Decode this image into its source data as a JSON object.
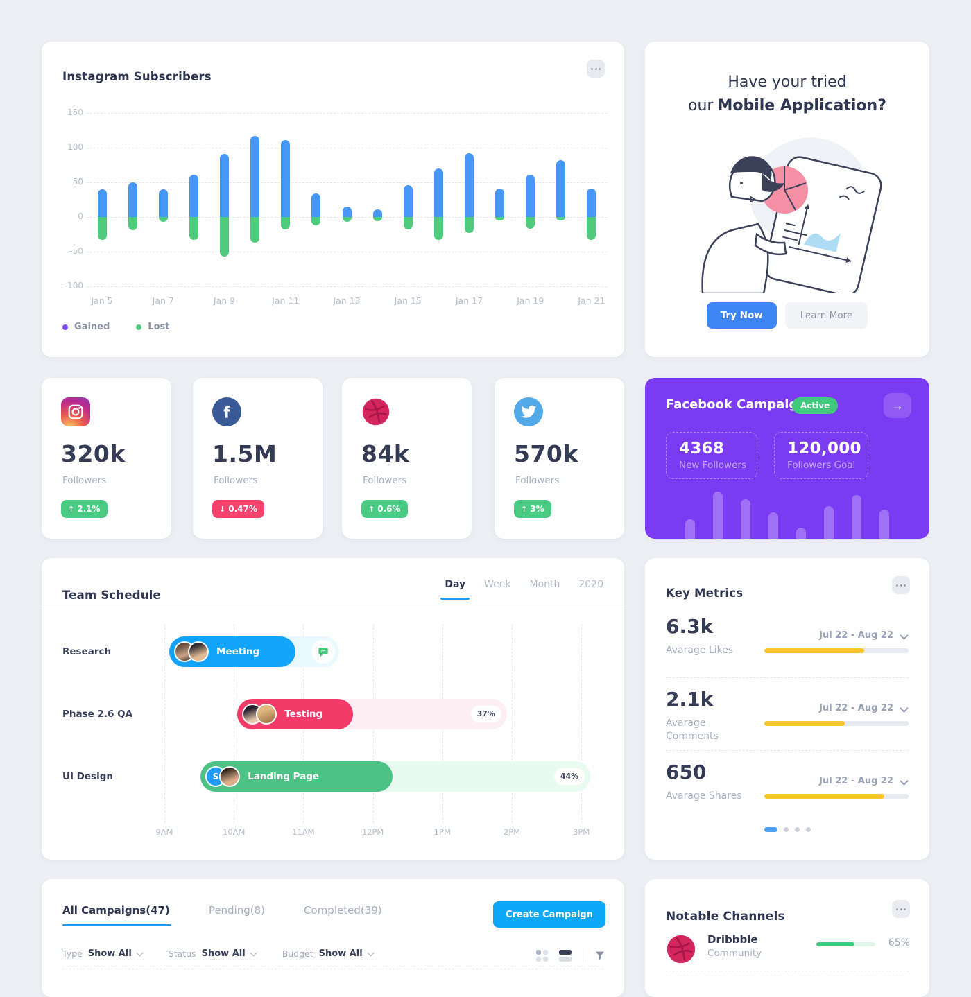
{
  "theme": {
    "background": "#EDEFF4",
    "card": "#FFFFFF",
    "text_dark": "#2F3651",
    "text_gray": "#A6ADBF",
    "blue": "#4697F8",
    "bright_blue": "#0DA7F8",
    "green": "#4FCB7D",
    "purple": "#7A3BF3",
    "legend_purple": "#7B4BFF",
    "yellow": "#FFC52F",
    "red": "#F4446E",
    "pink": "#F23B69"
  },
  "instagram_subscribers": {
    "title": "Instagram Subscribers",
    "legend": [
      {
        "label": "Gained",
        "color": "#7B4BFF"
      },
      {
        "label": "Lost",
        "color": "#4FCB7D"
      }
    ],
    "chart_data": {
      "type": "bar",
      "subtype": "diverging-stacked",
      "categories": [
        "Jan 5",
        "Jan 6",
        "Jan 7",
        "Jan 8",
        "Jan 9",
        "Jan 10",
        "Jan 11",
        "Jan 12",
        "Jan 13",
        "Jan 14",
        "Jan 15",
        "Jan 16",
        "Jan 17",
        "Jan 18",
        "Jan 19",
        "Jan 20",
        "Jan 21"
      ],
      "x_tick_labels": [
        "Jan 5",
        "Jan 7",
        "Jan 9",
        "Jan 11",
        "Jan 13",
        "Jan 15",
        "Jan 17",
        "Jan 19",
        "Jan 21"
      ],
      "series": [
        {
          "name": "Gained",
          "color": "#4697F8",
          "values": [
            40,
            50,
            40,
            61,
            91,
            117,
            111,
            34,
            15,
            11,
            46,
            70,
            92,
            41,
            61,
            82,
            41
          ]
        },
        {
          "name": "Lost",
          "color": "#4FCB7D",
          "values": [
            -33,
            -19,
            -7,
            -33,
            -57,
            -37,
            -18,
            -12,
            -7,
            -6,
            -18,
            -33,
            -23,
            -5,
            -17,
            -5,
            -33
          ]
        }
      ],
      "ylim": [
        -100,
        150
      ],
      "y_ticks": [
        150,
        100,
        50,
        0,
        -50,
        -100
      ],
      "grid": "dashed-horizontal",
      "legend_position": "bottom-left"
    }
  },
  "mobile_app_promo": {
    "heading_line1": "Have your tried",
    "heading_line2_normal": "our",
    "heading_line2_bold": "Mobile Application?",
    "primary_button": "Try Now",
    "secondary_button": "Learn More"
  },
  "social_stats": [
    {
      "network": "Instagram",
      "value": "320k",
      "label": "Followers",
      "change": "2.1%",
      "trend": "up"
    },
    {
      "network": "Facebook",
      "value": "1.5M",
      "label": "Followers",
      "change": "0.47%",
      "trend": "down"
    },
    {
      "network": "Dribbble",
      "value": "84k",
      "label": "Followers",
      "change": "0.6%",
      "trend": "up"
    },
    {
      "network": "Twitter",
      "value": "570k",
      "label": "Followers",
      "change": "3%",
      "trend": "up"
    }
  ],
  "facebook_campaign": {
    "title": "Facebook Campaign",
    "badge": "Active",
    "stats": [
      {
        "value": "4368",
        "label": "New Followers"
      },
      {
        "value": "120,000",
        "label": "Followers Goal"
      }
    ],
    "spark_bars": [
      28,
      68,
      57,
      38,
      16,
      47,
      63,
      42
    ]
  },
  "team_schedule": {
    "title": "Team Schedule",
    "tabs": [
      "Day",
      "Week",
      "Month",
      "2020"
    ],
    "active_tab": "Day",
    "time_labels": [
      "9AM",
      "10AM",
      "11AM",
      "12PM",
      "1PM",
      "2PM",
      "3PM"
    ],
    "rows": [
      {
        "label": "Research",
        "task": "Meeting",
        "start_h": 0.07,
        "end_h": 1.89,
        "track_end_h": 2.52,
        "progress": "",
        "s_badge": ""
      },
      {
        "label": "Phase 2.6 QA",
        "task": "Testing",
        "start_h": 1.05,
        "end_h": 2.71,
        "track_end_h": 4.93,
        "progress": "37%",
        "s_badge": ""
      },
      {
        "label": "UI Design",
        "task": "Landing Page",
        "start_h": 0.52,
        "end_h": 3.28,
        "track_end_h": 6.13,
        "progress": "44%",
        "s_badge": "S"
      }
    ]
  },
  "key_metrics": {
    "title": "Key Metrics",
    "items": [
      {
        "value": "6.3k",
        "label": "Avarage Likes",
        "range": "Jul 22 - Aug 22",
        "progress_pct": 69
      },
      {
        "value": "2.1k",
        "label": "Avarage Comments",
        "range": "Jul 22 - Aug 22",
        "progress_pct": 56
      },
      {
        "value": "650",
        "label": "Avarage Shares",
        "range": "Jul 22 - Aug 22",
        "progress_pct": 83
      }
    ],
    "pagination": {
      "dots": 4,
      "active": 0
    }
  },
  "campaigns": {
    "tabs": [
      {
        "label": "All Campaigns(47)",
        "active": true
      },
      {
        "label": "Pending(8)",
        "active": false
      },
      {
        "label": "Completed(39)",
        "active": false
      }
    ],
    "create_button": "Create Campaign",
    "filters": [
      {
        "label": "Type",
        "value": "Show All"
      },
      {
        "label": "Status",
        "value": "Show All"
      },
      {
        "label": "Budget",
        "value": "Show All"
      }
    ]
  },
  "notable_channels": {
    "title": "Notable Channels",
    "channels": [
      {
        "name": "Dribbble",
        "category": "Community",
        "percent": "65%",
        "progress_pct": 65
      }
    ]
  }
}
